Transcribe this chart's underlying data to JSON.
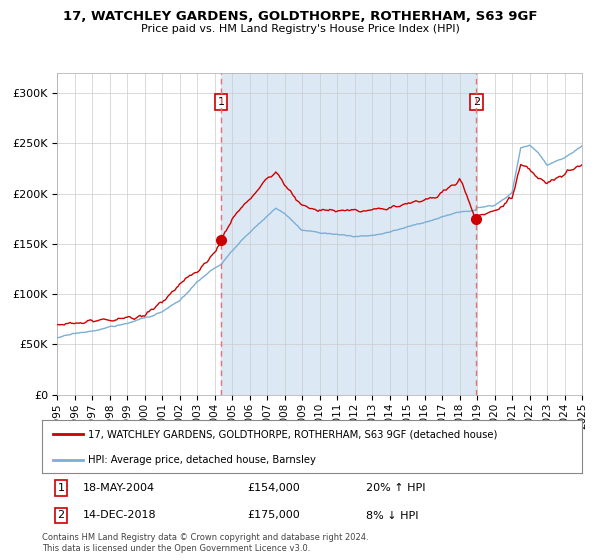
{
  "title1": "17, WATCHLEY GARDENS, GOLDTHORPE, ROTHERHAM, S63 9GF",
  "title2": "Price paid vs. HM Land Registry's House Price Index (HPI)",
  "legend_line1": "17, WATCHLEY GARDENS, GOLDTHORPE, ROTHERHAM, S63 9GF (detached house)",
  "legend_line2": "HPI: Average price, detached house, Barnsley",
  "annotation1_date": "18-MAY-2004",
  "annotation1_price": "£154,000",
  "annotation1_hpi": "20% ↑ HPI",
  "annotation2_date": "14-DEC-2018",
  "annotation2_price": "£175,000",
  "annotation2_hpi": "8% ↓ HPI",
  "footnote1": "Contains HM Land Registry data © Crown copyright and database right 2024.",
  "footnote2": "This data is licensed under the Open Government Licence v3.0.",
  "red_line_color": "#cc0000",
  "blue_line_color": "#7bafd4",
  "fill_color": "#dce9f5",
  "vline_color": "#e87070",
  "dot_color": "#cc0000",
  "background_color": "#ffffff",
  "grid_color": "#cccccc",
  "year_start": 1995,
  "year_end": 2025,
  "ylim_max": 320000,
  "sale1_year": 2004.38,
  "sale1_price": 154000,
  "sale2_year": 2018.96,
  "sale2_price": 175000
}
